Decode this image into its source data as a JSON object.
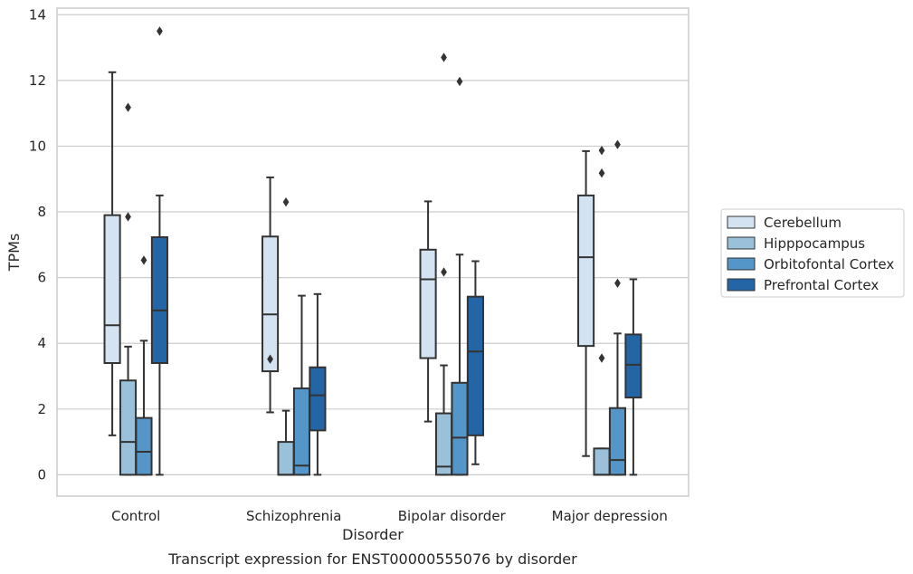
{
  "chart_data": {
    "type": "box",
    "title": "",
    "caption": "Transcript expression for ENST00000555076 by disorder",
    "xlabel": "Disorder",
    "ylabel": "TPMs",
    "ylim": [
      -0.65,
      14.2
    ],
    "yticks": [
      0,
      2,
      4,
      6,
      8,
      10,
      12,
      14
    ],
    "categories": [
      "Control",
      "Schizophrenia",
      "Bipolar disorder",
      "Major depression"
    ],
    "grid": "horizontal",
    "legend_position": "right",
    "series": [
      {
        "name": "Cerebellum",
        "color": "#d3e3f2",
        "boxes": [
          {
            "whislo": 1.2,
            "q1": 3.4,
            "med": 4.55,
            "q3": 7.9,
            "whishi": 12.25,
            "fliers": []
          },
          {
            "whislo": 1.9,
            "q1": 3.15,
            "med": 4.88,
            "q3": 7.25,
            "whishi": 9.05,
            "fliers": [
              3.52
            ]
          },
          {
            "whislo": 1.62,
            "q1": 3.55,
            "med": 5.95,
            "q3": 6.85,
            "whishi": 8.32,
            "fliers": []
          },
          {
            "whislo": 0.57,
            "q1": 3.92,
            "med": 6.62,
            "q3": 8.5,
            "whishi": 9.85,
            "fliers": []
          }
        ]
      },
      {
        "name": "Hipppocampus",
        "color": "#9ac0da",
        "boxes": [
          {
            "whislo": 0,
            "q1": 0,
            "med": 1.0,
            "q3": 2.87,
            "whishi": 3.9,
            "fliers": [
              7.85,
              11.18
            ]
          },
          {
            "whislo": 0,
            "q1": 0,
            "med": 0,
            "q3": 1.0,
            "whishi": 1.95,
            "fliers": [
              8.3
            ]
          },
          {
            "whislo": 0,
            "q1": 0,
            "med": 0.25,
            "q3": 1.87,
            "whishi": 3.33,
            "fliers": [
              6.17,
              12.7
            ]
          },
          {
            "whislo": 0,
            "q1": 0,
            "med": 0,
            "q3": 0.8,
            "whishi": 0.8,
            "fliers": [
              3.55,
              9.18,
              9.87
            ]
          }
        ]
      },
      {
        "name": "Orbitofontal Cortex",
        "color": "#5596c8",
        "boxes": [
          {
            "whislo": 0,
            "q1": 0,
            "med": 0.7,
            "q3": 1.73,
            "whishi": 4.08,
            "fliers": [
              6.53
            ]
          },
          {
            "whislo": 0,
            "q1": 0,
            "med": 0.28,
            "q3": 2.63,
            "whishi": 5.45,
            "fliers": []
          },
          {
            "whislo": 0,
            "q1": 0,
            "med": 1.13,
            "q3": 2.8,
            "whishi": 6.7,
            "fliers": [
              11.97
            ]
          },
          {
            "whislo": 0,
            "q1": 0,
            "med": 0.45,
            "q3": 2.03,
            "whishi": 4.3,
            "fliers": [
              5.83,
              10.05
            ]
          }
        ]
      },
      {
        "name": "Prefrontal Cortex",
        "color": "#2465a5",
        "boxes": [
          {
            "whislo": 0,
            "q1": 3.4,
            "med": 5.0,
            "q3": 7.23,
            "whishi": 8.5,
            "fliers": [
              13.5
            ]
          },
          {
            "whislo": 0,
            "q1": 1.35,
            "med": 2.42,
            "q3": 3.27,
            "whishi": 5.5,
            "fliers": []
          },
          {
            "whislo": 0.32,
            "q1": 1.2,
            "med": 3.75,
            "q3": 5.42,
            "whishi": 6.5,
            "fliers": []
          },
          {
            "whislo": 0,
            "q1": 2.35,
            "med": 3.35,
            "q3": 4.27,
            "whishi": 5.95,
            "fliers": []
          }
        ]
      }
    ]
  }
}
